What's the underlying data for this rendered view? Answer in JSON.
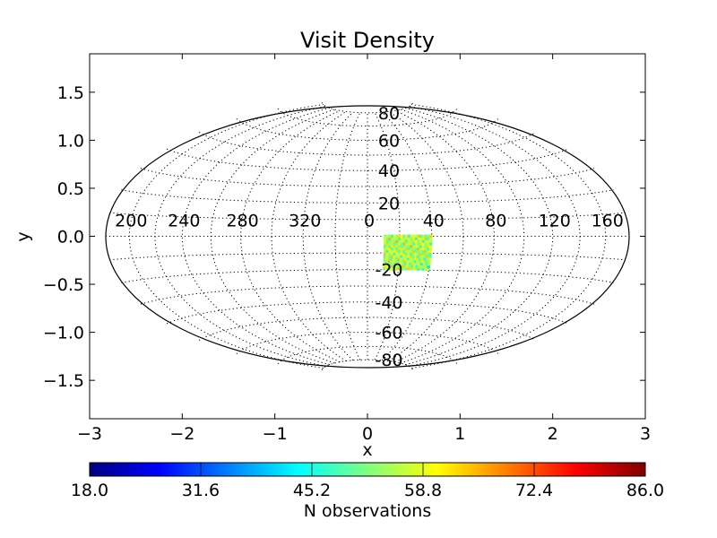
{
  "chart_data": {
    "type": "heatmap",
    "title": "Visit Density",
    "xlabel": "x",
    "ylabel": "y",
    "xlim": [
      -3,
      3
    ],
    "ylim": [
      -1.9,
      1.9
    ],
    "x_ticks": [
      "−3",
      "−2",
      "−1",
      "0",
      "1",
      "2",
      "3"
    ],
    "x_tick_values": [
      -3,
      -2,
      -1,
      0,
      1,
      2,
      3
    ],
    "y_ticks": [
      "1.5",
      "1.0",
      "0.5",
      "0.0",
      "−0.5",
      "−1.0",
      "−1.5"
    ],
    "y_tick_values": [
      1.5,
      1.0,
      0.5,
      0.0,
      -0.5,
      -1.0,
      -1.5
    ],
    "projection": "hammer",
    "meridian_labels": [
      "200",
      "240",
      "280",
      "320",
      "0",
      "40",
      "80",
      "120",
      "160"
    ],
    "meridian_label_values": [
      -160,
      -120,
      -80,
      -40,
      0,
      40,
      80,
      120,
      160
    ],
    "parallel_labels": [
      "80",
      "60",
      "40",
      "20",
      "-20",
      "-40",
      "-60",
      "-80"
    ],
    "parallel_label_values": [
      80,
      60,
      40,
      20,
      -20,
      -40,
      -60,
      -80
    ],
    "grid": true,
    "density_region": {
      "lon_range": [
        10,
        40
      ],
      "lat_range": [
        -20,
        0
      ]
    },
    "colorbar": {
      "label": "N observations",
      "min": 18.0,
      "max": 86.0,
      "ticks": [
        "18.0",
        "31.6",
        "45.2",
        "58.8",
        "72.4",
        "86.0"
      ],
      "colormap": "jet",
      "orientation": "horizontal",
      "placement": "bottom"
    }
  }
}
